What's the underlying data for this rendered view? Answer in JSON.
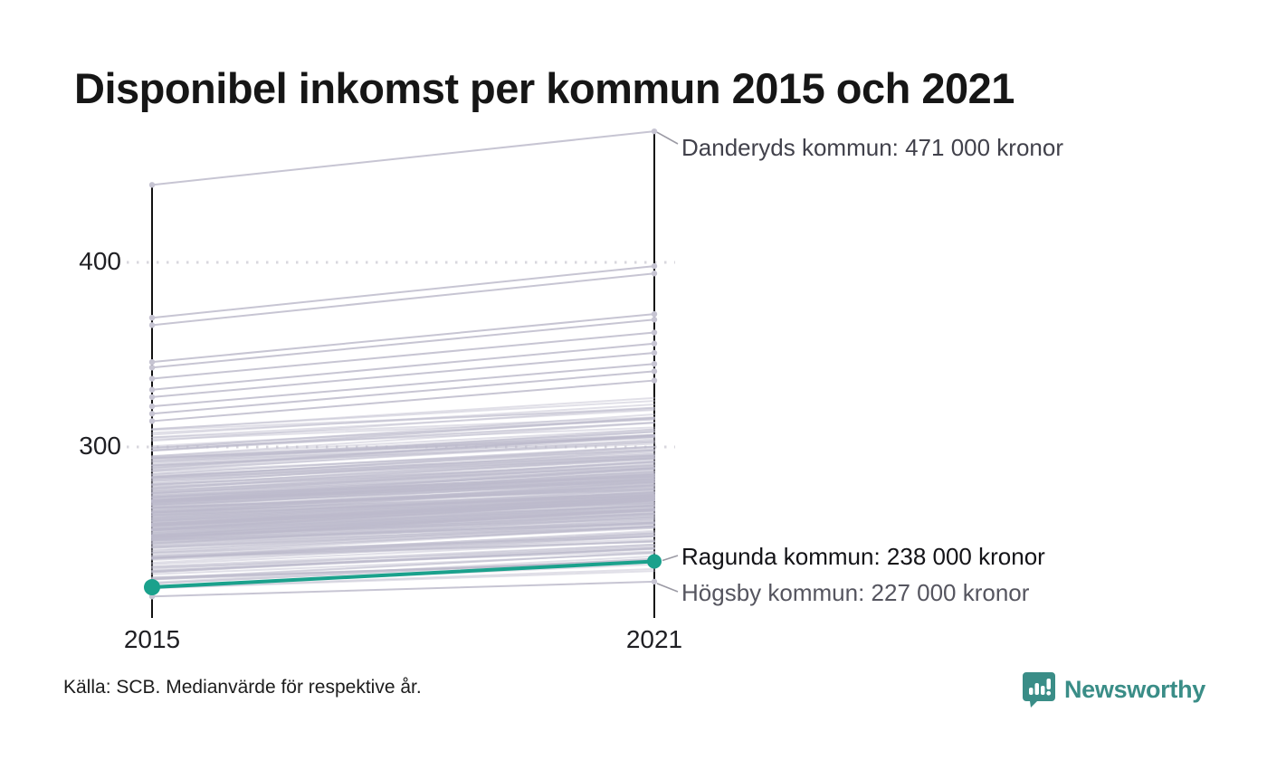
{
  "title": "Disponibel inkomst per kommun 2015 och 2021",
  "footer": {
    "source": "Källa: SCB. Medianvärde för respektive år."
  },
  "branding": {
    "name": "Newsworthy",
    "color": "#3A8D87"
  },
  "chart_data": {
    "type": "slope",
    "x_categories": [
      "2015",
      "2021"
    ],
    "ytick_labels": [
      "400",
      "300"
    ],
    "ytick_values": [
      400,
      300
    ],
    "ylim": [
      210,
      480
    ],
    "grid": "dotted-horizontal",
    "highlight_series": {
      "name": "Ragunda kommun",
      "color": "#1AA18C",
      "values": [
        224,
        238
      ]
    },
    "annotations": [
      {
        "text": "Danderyds kommun: 471 000 kronor",
        "value_2021": 471,
        "emphasis": "muted"
      },
      {
        "text": "Ragunda kommun: 238 000 kronor",
        "value_2021": 238,
        "emphasis": "strong"
      },
      {
        "text": "Högsby kommun: 227 000 kronor",
        "value_2021": 227,
        "emphasis": "muted"
      }
    ],
    "notable_lines": [
      [
        442,
        471
      ],
      [
        370,
        398
      ],
      [
        366,
        394
      ],
      [
        346,
        372
      ],
      [
        343,
        369
      ],
      [
        337,
        362
      ],
      [
        331,
        356
      ],
      [
        327,
        351
      ],
      [
        322,
        345
      ],
      [
        318,
        341
      ],
      [
        314,
        336
      ],
      [
        219,
        227
      ]
    ],
    "background": {
      "line_count_total": 290,
      "color": "#BDBBCB",
      "growth_pct_range": [
        3.5,
        6.5
      ],
      "buckets": [
        {
          "min": 295,
          "max": 312,
          "count": 18
        },
        {
          "min": 278,
          "max": 295,
          "count": 45
        },
        {
          "min": 262,
          "max": 278,
          "count": 80
        },
        {
          "min": 248,
          "max": 262,
          "count": 80
        },
        {
          "min": 232,
          "max": 248,
          "count": 40
        },
        {
          "min": 222,
          "max": 232,
          "count": 14
        }
      ]
    }
  }
}
